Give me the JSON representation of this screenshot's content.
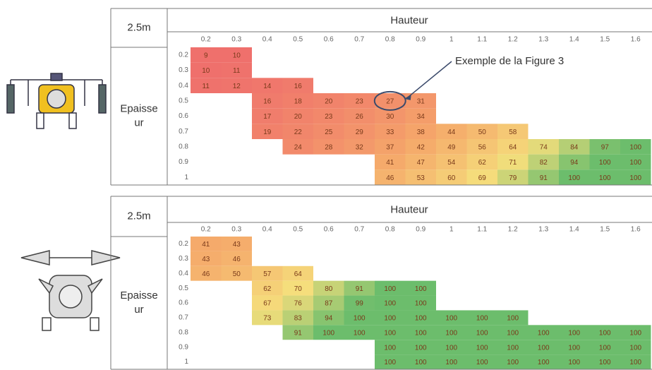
{
  "annotation": "Exemple de la Figure 3",
  "tables": [
    {
      "corner": "2.5m",
      "column_title": "Hauteur",
      "row_title": [
        "Epaisse",
        "ur"
      ],
      "columns": [
        0.2,
        0.3,
        0.4,
        0.5,
        0.6,
        0.7,
        0.8,
        0.9,
        1,
        1.1,
        1.2,
        1.3,
        1.4,
        1.5,
        1.6
      ],
      "rows": [
        {
          "label": 0.2,
          "cells": [
            9,
            10,
            null,
            null,
            null,
            null,
            null,
            null,
            null,
            null,
            null,
            null,
            null,
            null,
            null
          ]
        },
        {
          "label": 0.3,
          "cells": [
            10,
            11,
            null,
            null,
            null,
            null,
            null,
            null,
            null,
            null,
            null,
            null,
            null,
            null,
            null
          ]
        },
        {
          "label": 0.4,
          "cells": [
            11,
            12,
            14,
            16,
            null,
            null,
            null,
            null,
            null,
            null,
            null,
            null,
            null,
            null,
            null
          ]
        },
        {
          "label": 0.5,
          "cells": [
            null,
            null,
            16,
            18,
            20,
            23,
            27,
            31,
            null,
            null,
            null,
            null,
            null,
            null,
            null
          ]
        },
        {
          "label": 0.6,
          "cells": [
            null,
            null,
            17,
            20,
            23,
            26,
            30,
            34,
            null,
            null,
            null,
            null,
            null,
            null,
            null
          ]
        },
        {
          "label": 0.7,
          "cells": [
            null,
            null,
            19,
            22,
            25,
            29,
            33,
            38,
            44,
            50,
            58,
            null,
            null,
            null,
            null
          ]
        },
        {
          "label": 0.8,
          "cells": [
            null,
            null,
            null,
            24,
            28,
            32,
            37,
            42,
            49,
            56,
            64,
            74,
            84,
            97,
            100
          ]
        },
        {
          "label": 0.9,
          "cells": [
            null,
            null,
            null,
            null,
            null,
            null,
            41,
            47,
            54,
            62,
            71,
            82,
            94,
            100,
            100
          ]
        },
        {
          "label": 1,
          "cells": [
            null,
            null,
            null,
            null,
            null,
            null,
            46,
            53,
            60,
            69,
            79,
            91,
            100,
            100,
            100
          ]
        }
      ]
    },
    {
      "corner": "2.5m",
      "column_title": "Hauteur",
      "row_title": [
        "Epaisse",
        "ur"
      ],
      "columns": [
        0.2,
        0.3,
        0.4,
        0.5,
        0.6,
        0.7,
        0.8,
        0.9,
        1,
        1.1,
        1.2,
        1.3,
        1.4,
        1.5,
        1.6
      ],
      "rows": [
        {
          "label": 0.2,
          "cells": [
            41,
            43,
            null,
            null,
            null,
            null,
            null,
            null,
            null,
            null,
            null,
            null,
            null,
            null,
            null
          ]
        },
        {
          "label": 0.3,
          "cells": [
            43,
            46,
            null,
            null,
            null,
            null,
            null,
            null,
            null,
            null,
            null,
            null,
            null,
            null,
            null
          ]
        },
        {
          "label": 0.4,
          "cells": [
            46,
            50,
            57,
            64,
            null,
            null,
            null,
            null,
            null,
            null,
            null,
            null,
            null,
            null,
            null
          ]
        },
        {
          "label": 0.5,
          "cells": [
            null,
            null,
            62,
            70,
            80,
            91,
            100,
            100,
            null,
            null,
            null,
            null,
            null,
            null,
            null
          ]
        },
        {
          "label": 0.6,
          "cells": [
            null,
            null,
            67,
            76,
            87,
            99,
            100,
            100,
            null,
            null,
            null,
            null,
            null,
            null,
            null
          ]
        },
        {
          "label": 0.7,
          "cells": [
            null,
            null,
            73,
            83,
            94,
            100,
            100,
            100,
            100,
            100,
            100,
            null,
            null,
            null,
            null
          ]
        },
        {
          "label": 0.8,
          "cells": [
            null,
            null,
            null,
            91,
            100,
            100,
            100,
            100,
            100,
            100,
            100,
            100,
            100,
            100,
            100
          ]
        },
        {
          "label": 0.9,
          "cells": [
            null,
            null,
            null,
            null,
            null,
            null,
            100,
            100,
            100,
            100,
            100,
            100,
            100,
            100,
            100
          ]
        },
        {
          "label": 1,
          "cells": [
            null,
            null,
            null,
            null,
            null,
            null,
            100,
            100,
            100,
            100,
            100,
            100,
            100,
            100,
            100
          ]
        }
      ]
    }
  ]
}
